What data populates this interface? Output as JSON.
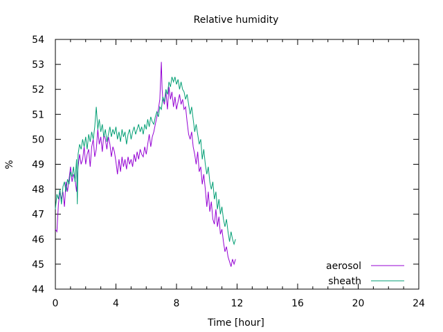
{
  "chart_data": {
    "type": "line",
    "title": "Relative humidity",
    "xlabel": "Time [hour]",
    "ylabel": "%",
    "xlim": [
      0,
      24
    ],
    "ylim": [
      44,
      54
    ],
    "xticks": [
      0,
      4,
      8,
      12,
      16,
      20,
      24
    ],
    "yticks": [
      44,
      45,
      46,
      47,
      48,
      49,
      50,
      51,
      52,
      53,
      54
    ],
    "grid": false,
    "legend_position": "bottom-right",
    "series": [
      {
        "name": "aerosol",
        "color": "#9400d3",
        "points": [
          [
            0.0,
            46.4
          ],
          [
            0.1,
            46.3
          ],
          [
            0.2,
            47.4
          ],
          [
            0.3,
            47.9
          ],
          [
            0.4,
            47.6
          ],
          [
            0.5,
            47.9
          ],
          [
            0.6,
            47.3
          ],
          [
            0.7,
            48.3
          ],
          [
            0.8,
            47.9
          ],
          [
            0.9,
            48.4
          ],
          [
            1.0,
            48.9
          ],
          [
            1.1,
            48.3
          ],
          [
            1.2,
            48.6
          ],
          [
            1.3,
            48.4
          ],
          [
            1.4,
            47.9
          ],
          [
            1.5,
            48.9
          ],
          [
            1.6,
            49.4
          ],
          [
            1.7,
            49.0
          ],
          [
            1.8,
            49.2
          ],
          [
            1.9,
            49.7
          ],
          [
            2.0,
            49.0
          ],
          [
            2.1,
            49.4
          ],
          [
            2.2,
            49.6
          ],
          [
            2.3,
            48.9
          ],
          [
            2.4,
            49.7
          ],
          [
            2.5,
            50.0
          ],
          [
            2.6,
            49.3
          ],
          [
            2.7,
            49.6
          ],
          [
            2.8,
            50.4
          ],
          [
            2.9,
            49.8
          ],
          [
            3.0,
            50.1
          ],
          [
            3.1,
            49.5
          ],
          [
            3.2,
            50.2
          ],
          [
            3.3,
            50.0
          ],
          [
            3.4,
            49.6
          ],
          [
            3.5,
            50.1
          ],
          [
            3.6,
            49.8
          ],
          [
            3.7,
            49.3
          ],
          [
            3.8,
            49.7
          ],
          [
            3.9,
            49.5
          ],
          [
            4.0,
            49.1
          ],
          [
            4.1,
            48.6
          ],
          [
            4.2,
            49.2
          ],
          [
            4.3,
            48.7
          ],
          [
            4.4,
            49.3
          ],
          [
            4.5,
            48.9
          ],
          [
            4.6,
            49.2
          ],
          [
            4.7,
            48.8
          ],
          [
            4.8,
            49.3
          ],
          [
            4.9,
            49.0
          ],
          [
            5.0,
            49.2
          ],
          [
            5.1,
            48.9
          ],
          [
            5.2,
            49.4
          ],
          [
            5.3,
            49.1
          ],
          [
            5.4,
            49.5
          ],
          [
            5.5,
            49.2
          ],
          [
            5.6,
            49.6
          ],
          [
            5.7,
            49.4
          ],
          [
            5.8,
            49.3
          ],
          [
            5.9,
            49.7
          ],
          [
            6.0,
            49.4
          ],
          [
            6.1,
            49.8
          ],
          [
            6.2,
            50.2
          ],
          [
            6.3,
            49.7
          ],
          [
            6.4,
            50.1
          ],
          [
            6.5,
            50.3
          ],
          [
            6.6,
            50.6
          ],
          [
            6.7,
            50.9
          ],
          [
            6.8,
            51.2
          ],
          [
            6.9,
            51.6
          ],
          [
            7.0,
            53.1
          ],
          [
            7.05,
            52.0
          ],
          [
            7.1,
            51.6
          ],
          [
            7.2,
            51.4
          ],
          [
            7.3,
            51.9
          ],
          [
            7.4,
            51.2
          ],
          [
            7.5,
            52.1
          ],
          [
            7.6,
            51.6
          ],
          [
            7.7,
            51.9
          ],
          [
            7.8,
            51.3
          ],
          [
            7.9,
            51.7
          ],
          [
            8.0,
            51.2
          ],
          [
            8.1,
            51.5
          ],
          [
            8.2,
            51.8
          ],
          [
            8.3,
            51.4
          ],
          [
            8.4,
            51.6
          ],
          [
            8.5,
            51.2
          ],
          [
            8.6,
            51.3
          ],
          [
            8.7,
            50.7
          ],
          [
            8.8,
            50.2
          ],
          [
            8.9,
            50.0
          ],
          [
            9.0,
            50.3
          ],
          [
            9.1,
            49.7
          ],
          [
            9.2,
            49.4
          ],
          [
            9.3,
            49.0
          ],
          [
            9.4,
            49.5
          ],
          [
            9.5,
            48.7
          ],
          [
            9.6,
            48.9
          ],
          [
            9.7,
            48.2
          ],
          [
            9.8,
            48.6
          ],
          [
            9.9,
            48.0
          ],
          [
            10.0,
            47.3
          ],
          [
            10.1,
            47.9
          ],
          [
            10.2,
            47.1
          ],
          [
            10.3,
            47.5
          ],
          [
            10.4,
            46.8
          ],
          [
            10.5,
            46.6
          ],
          [
            10.6,
            47.2
          ],
          [
            10.7,
            46.5
          ],
          [
            10.8,
            46.9
          ],
          [
            10.9,
            46.2
          ],
          [
            11.0,
            46.4
          ],
          [
            11.1,
            45.9
          ],
          [
            11.2,
            45.5
          ],
          [
            11.3,
            45.7
          ],
          [
            11.4,
            45.3
          ],
          [
            11.5,
            45.1
          ],
          [
            11.6,
            44.9
          ],
          [
            11.7,
            45.2
          ],
          [
            11.8,
            45.0
          ],
          [
            11.9,
            45.2
          ]
        ]
      },
      {
        "name": "sheath",
        "color": "#009e73",
        "points": [
          [
            0.0,
            47.2
          ],
          [
            0.1,
            47.8
          ],
          [
            0.2,
            47.6
          ],
          [
            0.3,
            48.0
          ],
          [
            0.4,
            47.4
          ],
          [
            0.5,
            48.1
          ],
          [
            0.6,
            48.3
          ],
          [
            0.7,
            47.9
          ],
          [
            0.8,
            48.4
          ],
          [
            0.9,
            48.2
          ],
          [
            1.0,
            48.7
          ],
          [
            1.1,
            48.5
          ],
          [
            1.2,
            48.9
          ],
          [
            1.3,
            48.3
          ],
          [
            1.4,
            49.2
          ],
          [
            1.45,
            47.4
          ],
          [
            1.5,
            49.4
          ],
          [
            1.6,
            49.8
          ],
          [
            1.7,
            49.6
          ],
          [
            1.8,
            50.0
          ],
          [
            1.9,
            49.7
          ],
          [
            2.0,
            50.1
          ],
          [
            2.1,
            49.6
          ],
          [
            2.2,
            50.2
          ],
          [
            2.3,
            49.9
          ],
          [
            2.4,
            50.3
          ],
          [
            2.5,
            50.0
          ],
          [
            2.6,
            50.5
          ],
          [
            2.7,
            51.3
          ],
          [
            2.8,
            50.4
          ],
          [
            2.9,
            50.8
          ],
          [
            3.0,
            50.3
          ],
          [
            3.1,
            50.6
          ],
          [
            3.2,
            50.1
          ],
          [
            3.3,
            50.4
          ],
          [
            3.4,
            49.9
          ],
          [
            3.5,
            50.2
          ],
          [
            3.6,
            50.5
          ],
          [
            3.7,
            50.1
          ],
          [
            3.8,
            50.4
          ],
          [
            3.9,
            50.2
          ],
          [
            4.0,
            50.5
          ],
          [
            4.1,
            50.0
          ],
          [
            4.2,
            50.3
          ],
          [
            4.3,
            49.9
          ],
          [
            4.4,
            50.4
          ],
          [
            4.5,
            50.1
          ],
          [
            4.6,
            50.3
          ],
          [
            4.7,
            49.8
          ],
          [
            4.8,
            50.2
          ],
          [
            4.9,
            50.4
          ],
          [
            5.0,
            50.0
          ],
          [
            5.1,
            50.3
          ],
          [
            5.2,
            50.5
          ],
          [
            5.3,
            50.2
          ],
          [
            5.4,
            50.4
          ],
          [
            5.5,
            50.6
          ],
          [
            5.6,
            50.3
          ],
          [
            5.7,
            50.5
          ],
          [
            5.8,
            50.2
          ],
          [
            5.9,
            50.6
          ],
          [
            6.0,
            50.4
          ],
          [
            6.1,
            50.8
          ],
          [
            6.2,
            50.5
          ],
          [
            6.3,
            50.9
          ],
          [
            6.4,
            50.7
          ],
          [
            6.5,
            50.6
          ],
          [
            6.6,
            50.9
          ],
          [
            6.7,
            51.1
          ],
          [
            6.8,
            50.9
          ],
          [
            6.9,
            51.3
          ],
          [
            7.0,
            51.2
          ],
          [
            7.1,
            51.7
          ],
          [
            7.2,
            51.5
          ],
          [
            7.3,
            52.0
          ],
          [
            7.4,
            51.8
          ],
          [
            7.5,
            52.3
          ],
          [
            7.6,
            52.1
          ],
          [
            7.7,
            52.5
          ],
          [
            7.8,
            52.3
          ],
          [
            7.9,
            52.5
          ],
          [
            8.0,
            52.2
          ],
          [
            8.1,
            52.4
          ],
          [
            8.2,
            52.0
          ],
          [
            8.3,
            52.3
          ],
          [
            8.4,
            52.0
          ],
          [
            8.5,
            51.9
          ],
          [
            8.6,
            51.6
          ],
          [
            8.7,
            51.8
          ],
          [
            8.8,
            51.4
          ],
          [
            8.9,
            51.0
          ],
          [
            9.0,
            51.3
          ],
          [
            9.1,
            50.8
          ],
          [
            9.2,
            50.3
          ],
          [
            9.3,
            50.6
          ],
          [
            9.4,
            50.2
          ],
          [
            9.5,
            49.8
          ],
          [
            9.6,
            50.0
          ],
          [
            9.7,
            49.2
          ],
          [
            9.8,
            49.6
          ],
          [
            9.9,
            49.0
          ],
          [
            10.0,
            48.6
          ],
          [
            10.1,
            48.9
          ],
          [
            10.2,
            48.3
          ],
          [
            10.3,
            48.0
          ],
          [
            10.4,
            48.3
          ],
          [
            10.5,
            47.6
          ],
          [
            10.6,
            47.9
          ],
          [
            10.7,
            47.2
          ],
          [
            10.8,
            47.6
          ],
          [
            10.9,
            47.0
          ],
          [
            11.0,
            47.3
          ],
          [
            11.1,
            46.8
          ],
          [
            11.2,
            46.5
          ],
          [
            11.3,
            46.8
          ],
          [
            11.4,
            46.3
          ],
          [
            11.5,
            45.9
          ],
          [
            11.6,
            46.3
          ],
          [
            11.7,
            46.0
          ],
          [
            11.8,
            45.8
          ],
          [
            11.9,
            46.0
          ]
        ]
      }
    ]
  }
}
